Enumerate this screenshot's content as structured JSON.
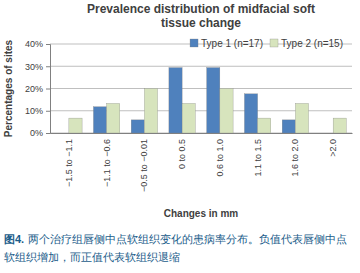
{
  "chart_data": {
    "type": "bar",
    "title": "Prevalence distribution of midfacial soft tissue change",
    "x_label": "Changes in mm",
    "y_label": "Percentages of sites",
    "categories": [
      "−1.5 to −1.1",
      "−1.1 to −0.6",
      "−0.5 to −0.01",
      "0 to 0.5",
      "0.6 to 1.0",
      "1.1 to 1.5",
      "1.6 to 2.0",
      ">2.0"
    ],
    "series": [
      {
        "name": "Type 1 (n=17)",
        "color": "#4f81bd",
        "values": [
          0,
          11.8,
          5.9,
          29.4,
          29.4,
          17.6,
          5.9,
          0
        ]
      },
      {
        "name": "Type 2 (n=15)",
        "color": "#d7e4bd",
        "values": [
          6.7,
          13.3,
          20,
          13.3,
          20,
          6.7,
          13.3,
          6.7
        ]
      }
    ],
    "ylim": [
      0,
      40
    ],
    "yticks": [
      {
        "value": 0,
        "label": "0%"
      },
      {
        "value": 10,
        "label": "10%"
      },
      {
        "value": 20,
        "label": "20%"
      },
      {
        "value": 30,
        "label": "30%"
      },
      {
        "value": 40,
        "label": "40%"
      }
    ],
    "grid": true,
    "legend": "top-right",
    "caption_label": "图4.",
    "caption": "两个治疗组唇侧中点软组织变化的患病率分布。负值代表唇侧中点软组织增加，而正值代表软组织退缩"
  }
}
